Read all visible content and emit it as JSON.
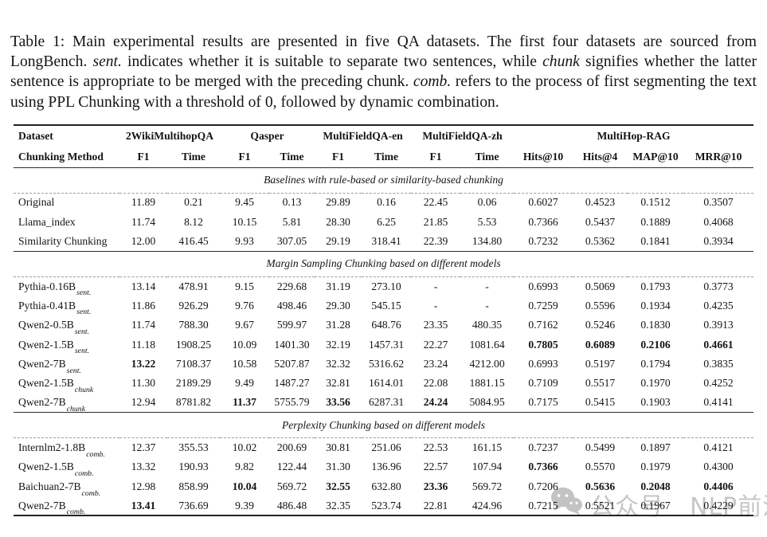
{
  "caption": {
    "segments": [
      {
        "text": "Table 1: Main experimental results are presented in five QA datasets.  The first four datasets are sourced from LongBench.  ",
        "italic": false
      },
      {
        "text": "sent.",
        "italic": true
      },
      {
        "text": "  indicates whether it is suitable to separate two sentences, while ",
        "italic": false
      },
      {
        "text": "chunk",
        "italic": true
      },
      {
        "text": " signifies whether the latter sentence is appropriate to be merged with the preceding chunk. ",
        "italic": false
      },
      {
        "text": "comb.",
        "italic": true
      },
      {
        "text": "  refers to the process of first segmenting the text using PPL Chunking with a threshold of 0, followed by dynamic combination.",
        "italic": false
      }
    ]
  },
  "table": {
    "corner": {
      "top_label": "Dataset",
      "bottom_label": "Chunking Method"
    },
    "groups": [
      {
        "label": "2WikiMultihopQA",
        "span": 2
      },
      {
        "label": "Qasper",
        "span": 2
      },
      {
        "label": "MultiFieldQA-en",
        "span": 2
      },
      {
        "label": "MultiFieldQA-zh",
        "span": 2
      },
      {
        "label": "MultiHop-RAG",
        "span": 4
      }
    ],
    "sub_headers": [
      "F1",
      "Time",
      "F1",
      "Time",
      "F1",
      "Time",
      "F1",
      "Time",
      "Hits@10",
      "Hits@4",
      "MAP@10",
      "MRR@10"
    ],
    "sections": [
      {
        "title": "Baselines with rule-based or similarity-based chunking",
        "rows": [
          {
            "method": "Original",
            "sub": "",
            "values": [
              "11.89",
              "0.21",
              "9.45",
              "0.13",
              "29.89",
              "0.16",
              "22.45",
              "0.06",
              "0.6027",
              "0.4523",
              "0.1512",
              "0.3507"
            ],
            "bold": []
          },
          {
            "method": "Llama_index",
            "sub": "",
            "values": [
              "11.74",
              "8.12",
              "10.15",
              "5.81",
              "28.30",
              "6.25",
              "21.85",
              "5.53",
              "0.7366",
              "0.5437",
              "0.1889",
              "0.4068"
            ],
            "bold": []
          },
          {
            "method": "Similarity Chunking",
            "sub": "",
            "values": [
              "12.00",
              "416.45",
              "9.93",
              "307.05",
              "29.19",
              "318.41",
              "22.39",
              "134.80",
              "0.7232",
              "0.5362",
              "0.1841",
              "0.3934"
            ],
            "bold": []
          }
        ]
      },
      {
        "title": "Margin Sampling Chunking based on different models",
        "rows": [
          {
            "method": "Pythia-0.16B",
            "sub": "sent.",
            "values": [
              "13.14",
              "478.91",
              "9.15",
              "229.68",
              "31.19",
              "273.10",
              "-",
              "-",
              "0.6993",
              "0.5069",
              "0.1793",
              "0.3773"
            ],
            "bold": []
          },
          {
            "method": "Pythia-0.41B",
            "sub": "sent.",
            "values": [
              "11.86",
              "926.29",
              "9.76",
              "498.46",
              "29.30",
              "545.15",
              "-",
              "-",
              "0.7259",
              "0.5596",
              "0.1934",
              "0.4235"
            ],
            "bold": []
          },
          {
            "method": "Qwen2-0.5B",
            "sub": "sent.",
            "values": [
              "11.74",
              "788.30",
              "9.67",
              "599.97",
              "31.28",
              "648.76",
              "23.35",
              "480.35",
              "0.7162",
              "0.5246",
              "0.1830",
              "0.3913"
            ],
            "bold": []
          },
          {
            "method": "Qwen2-1.5B",
            "sub": "sent.",
            "values": [
              "11.18",
              "1908.25",
              "10.09",
              "1401.30",
              "32.19",
              "1457.31",
              "22.27",
              "1081.64",
              "0.7805",
              "0.6089",
              "0.2106",
              "0.4661"
            ],
            "bold": [
              8,
              9,
              10,
              11
            ]
          },
          {
            "method": "Qwen2-7B",
            "sub": "sent.",
            "values": [
              "13.22",
              "7108.37",
              "10.58",
              "5207.87",
              "32.32",
              "5316.62",
              "23.24",
              "4212.00",
              "0.6993",
              "0.5197",
              "0.1794",
              "0.3835"
            ],
            "bold": [
              0
            ]
          },
          {
            "method": "Qwen2-1.5B",
            "sub": "chunk",
            "values": [
              "11.30",
              "2189.29",
              "9.49",
              "1487.27",
              "32.81",
              "1614.01",
              "22.08",
              "1881.15",
              "0.7109",
              "0.5517",
              "0.1970",
              "0.4252"
            ],
            "bold": []
          },
          {
            "method": "Qwen2-7B",
            "sub": "chunk",
            "values": [
              "12.94",
              "8781.82",
              "11.37",
              "5755.79",
              "33.56",
              "6287.31",
              "24.24",
              "5084.95",
              "0.7175",
              "0.5415",
              "0.1903",
              "0.4141"
            ],
            "bold": [
              2,
              4,
              6
            ]
          }
        ]
      },
      {
        "title": "Perplexity Chunking based on different models",
        "rows": [
          {
            "method": "Internlm2-1.8B",
            "sub": "comb.",
            "values": [
              "12.37",
              "355.53",
              "10.02",
              "200.69",
              "30.81",
              "251.06",
              "22.53",
              "161.15",
              "0.7237",
              "0.5499",
              "0.1897",
              "0.4121"
            ],
            "bold": []
          },
          {
            "method": "Qwen2-1.5B",
            "sub": "comb.",
            "values": [
              "13.32",
              "190.93",
              "9.82",
              "122.44",
              "31.30",
              "136.96",
              "22.57",
              "107.94",
              "0.7366",
              "0.5570",
              "0.1979",
              "0.4300"
            ],
            "bold": [
              8
            ]
          },
          {
            "method": "Baichuan2-7B",
            "sub": "comb.",
            "values": [
              "12.98",
              "858.99",
              "10.04",
              "569.72",
              "32.55",
              "632.80",
              "23.36",
              "569.72",
              "0.7206",
              "0.5636",
              "0.2048",
              "0.4406"
            ],
            "bold": [
              2,
              4,
              6,
              9,
              10,
              11
            ]
          },
          {
            "method": "Qwen2-7B",
            "sub": "comb.",
            "values": [
              "13.41",
              "736.69",
              "9.39",
              "486.48",
              "32.35",
              "523.74",
              "22.81",
              "424.96",
              "0.7215",
              "0.5521",
              "0.1967",
              "0.4229"
            ],
            "bold": [
              0
            ]
          }
        ]
      }
    ]
  },
  "watermark": {
    "text1": "公众号",
    "text2": "NLP前沿",
    "color": "#c6c6c6"
  }
}
